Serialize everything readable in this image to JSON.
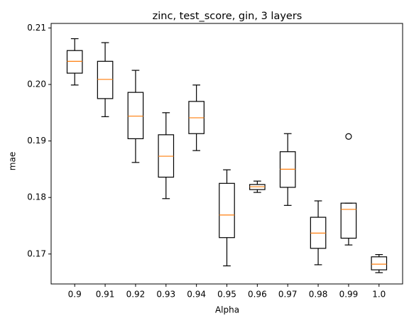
{
  "chart_data": {
    "type": "box",
    "title": "zinc, test_score, gin, 3 layers",
    "xlabel": "Alpha",
    "ylabel": "mae",
    "ylim": [
      0.1647,
      0.2108
    ],
    "yticks": [
      0.17,
      0.18,
      0.19,
      0.2,
      0.21
    ],
    "ytick_labels": [
      "0.17",
      "0.18",
      "0.19",
      "0.20",
      "0.21"
    ],
    "categories": [
      "0.9",
      "0.91",
      "0.92",
      "0.93",
      "0.94",
      "0.95",
      "0.96",
      "0.97",
      "0.98",
      "0.99",
      "1.0"
    ],
    "boxes": [
      {
        "whisker_low": 0.1999,
        "q1": 0.202,
        "median": 0.2041,
        "q3": 0.206,
        "whisker_high": 0.2081,
        "outliers": []
      },
      {
        "whisker_low": 0.1943,
        "q1": 0.1975,
        "median": 0.2009,
        "q3": 0.2041,
        "whisker_high": 0.2074,
        "outliers": []
      },
      {
        "whisker_low": 0.1862,
        "q1": 0.1904,
        "median": 0.1944,
        "q3": 0.1986,
        "whisker_high": 0.2025,
        "outliers": []
      },
      {
        "whisker_low": 0.1798,
        "q1": 0.1836,
        "median": 0.1873,
        "q3": 0.1911,
        "whisker_high": 0.195,
        "outliers": []
      },
      {
        "whisker_low": 0.1883,
        "q1": 0.1913,
        "median": 0.1941,
        "q3": 0.197,
        "whisker_high": 0.1999,
        "outliers": []
      },
      {
        "whisker_low": 0.1679,
        "q1": 0.1729,
        "median": 0.1769,
        "q3": 0.1825,
        "whisker_high": 0.1849,
        "outliers": []
      },
      {
        "whisker_low": 0.1809,
        "q1": 0.1814,
        "median": 0.1819,
        "q3": 0.1823,
        "whisker_high": 0.1829,
        "outliers": []
      },
      {
        "whisker_low": 0.1786,
        "q1": 0.1818,
        "median": 0.185,
        "q3": 0.1881,
        "whisker_high": 0.1913,
        "outliers": []
      },
      {
        "whisker_low": 0.1681,
        "q1": 0.171,
        "median": 0.1737,
        "q3": 0.1765,
        "whisker_high": 0.1794,
        "outliers": []
      },
      {
        "whisker_low": 0.1716,
        "q1": 0.1728,
        "median": 0.1779,
        "q3": 0.179,
        "whisker_high": 0.179,
        "outliers": [
          0.1908
        ]
      },
      {
        "whisker_low": 0.1667,
        "q1": 0.1672,
        "median": 0.1682,
        "q3": 0.1695,
        "whisker_high": 0.1699,
        "outliers": []
      }
    ],
    "box_color": "#000000",
    "median_color": "#ff7f0e",
    "grid": false,
    "legend": "none"
  }
}
